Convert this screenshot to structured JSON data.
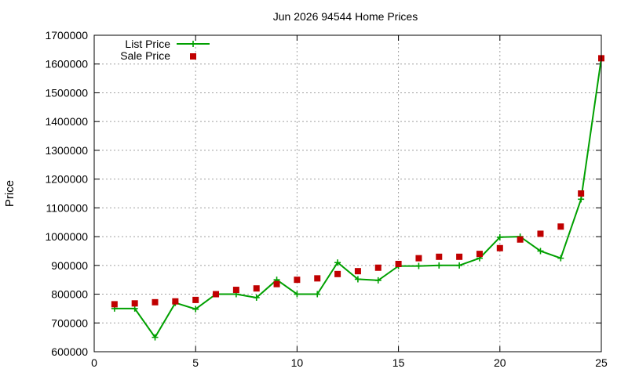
{
  "chart_data": {
    "type": "line",
    "title": "Jun 2026 94544 Home Prices",
    "xlabel": "",
    "ylabel": "Price",
    "xlim": [
      0,
      25
    ],
    "ylim": [
      600000,
      1700000
    ],
    "x_ticks": [
      0,
      5,
      10,
      15,
      20,
      25
    ],
    "y_ticks": [
      600000,
      700000,
      800000,
      900000,
      1000000,
      1100000,
      1200000,
      1300000,
      1400000,
      1500000,
      1600000,
      1700000
    ],
    "grid": true,
    "legend_position": "top-left",
    "series": [
      {
        "name": "List Price",
        "style": "line+points",
        "color": "#00a000",
        "x": [
          1,
          2,
          3,
          4,
          5,
          6,
          7,
          8,
          9,
          10,
          11,
          12,
          13,
          14,
          15,
          16,
          17,
          18,
          19,
          20,
          21,
          22,
          23,
          24,
          25
        ],
        "y": [
          750000,
          750000,
          650000,
          770000,
          748000,
          800000,
          800000,
          788000,
          850000,
          800000,
          800000,
          910000,
          852000,
          848000,
          898000,
          898000,
          900000,
          900000,
          925000,
          998000,
          1000000,
          950000,
          925000,
          1130000,
          1620000
        ]
      },
      {
        "name": "Sale Price",
        "style": "points",
        "color": "#c00000",
        "x": [
          1,
          2,
          3,
          4,
          5,
          6,
          7,
          8,
          9,
          10,
          11,
          12,
          13,
          14,
          15,
          16,
          17,
          18,
          19,
          20,
          21,
          22,
          23,
          24,
          25
        ],
        "y": [
          765000,
          768000,
          772000,
          775000,
          780000,
          800000,
          815000,
          820000,
          835000,
          850000,
          855000,
          870000,
          880000,
          892000,
          905000,
          925000,
          930000,
          930000,
          940000,
          960000,
          990000,
          1010000,
          1035000,
          1150000,
          1620000
        ]
      }
    ]
  }
}
